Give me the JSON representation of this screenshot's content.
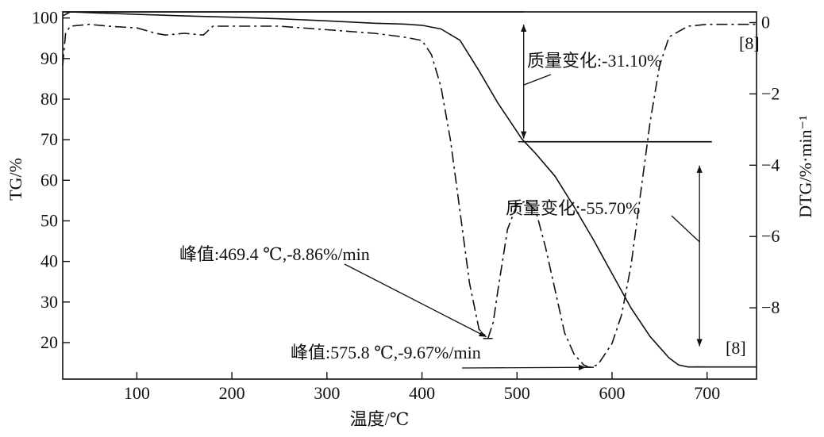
{
  "chart_data": {
    "type": "line",
    "xlabel": "温度/℃",
    "ylabel_left": "TG/%",
    "ylabel_right": "DTG/%·min⁻¹",
    "xlim": [
      22,
      752
    ],
    "ylim_left": [
      11,
      101.5
    ],
    "ylim_right": [
      -10,
      0.3
    ],
    "x_ticks": [
      100,
      200,
      300,
      400,
      500,
      600,
      700
    ],
    "y_left_ticks": [
      20,
      30,
      40,
      50,
      60,
      70,
      80,
      90,
      100
    ],
    "y_right_ticks": [
      0,
      -2,
      -4,
      -6,
      -8
    ],
    "series": [
      {
        "axis": "left",
        "style": "solid",
        "x": [
          22,
          30,
          50,
          100,
          150,
          200,
          250,
          300,
          350,
          380,
          400,
          420,
          440,
          460,
          480,
          500,
          505,
          520,
          540,
          560,
          580,
          600,
          620,
          640,
          660,
          670,
          680,
          700,
          720,
          752
        ],
        "y": [
          100.5,
          101.5,
          101.3,
          100.9,
          100.5,
          100.2,
          99.8,
          99.3,
          98.7,
          98.5,
          98.2,
          97.3,
          94.5,
          87.0,
          79.0,
          72.0,
          70.2,
          66.5,
          61.0,
          53.5,
          45.5,
          37.0,
          28.5,
          21.5,
          16.2,
          14.5,
          14.0,
          14.0,
          14.0,
          14.0
        ]
      },
      {
        "axis": "right",
        "style": "dashdot",
        "x": [
          22,
          25,
          30,
          50,
          70,
          100,
          120,
          130,
          150,
          170,
          180,
          200,
          250,
          300,
          350,
          380,
          400,
          410,
          420,
          430,
          440,
          450,
          460,
          469.4,
          475,
          480,
          490,
          500,
          510,
          520,
          530,
          540,
          550,
          560,
          570,
          575.8,
          585,
          600,
          610,
          620,
          630,
          640,
          650,
          660,
          680,
          700,
          720,
          752
        ],
        "y": [
          -1.2,
          -0.3,
          -0.1,
          -0.05,
          -0.1,
          -0.15,
          -0.3,
          -0.35,
          -0.3,
          -0.35,
          -0.1,
          -0.1,
          -0.1,
          -0.2,
          -0.3,
          -0.4,
          -0.5,
          -0.9,
          -1.8,
          -3.3,
          -5.3,
          -7.3,
          -8.6,
          -8.86,
          -8.4,
          -7.5,
          -5.8,
          -5.1,
          -5.0,
          -5.3,
          -6.3,
          -7.5,
          -8.7,
          -9.3,
          -9.6,
          -9.67,
          -9.6,
          -9.0,
          -8.2,
          -6.8,
          -4.8,
          -2.8,
          -1.2,
          -0.4,
          -0.1,
          -0.05,
          -0.05,
          -0.05
        ]
      }
    ],
    "annotations": {
      "mass_change_1": "质量变化:-31.10%",
      "mass_change_2": "质量变化:-55.70%",
      "peak_1": "峰值:469.4 ℃,-8.86%/min",
      "peak_2": "峰值:575.8 ℃,-9.67%/min",
      "ref_top": "[8]",
      "ref_bottom": "[8]"
    },
    "reference_points": {
      "level_top": 101.5,
      "level_mid": 69.5,
      "level_bottom": 14.0,
      "step1_x": 507,
      "step2_x": 692,
      "peak1": [
        469.4,
        -8.86
      ],
      "peak2": [
        575.8,
        -9.67
      ]
    }
  }
}
